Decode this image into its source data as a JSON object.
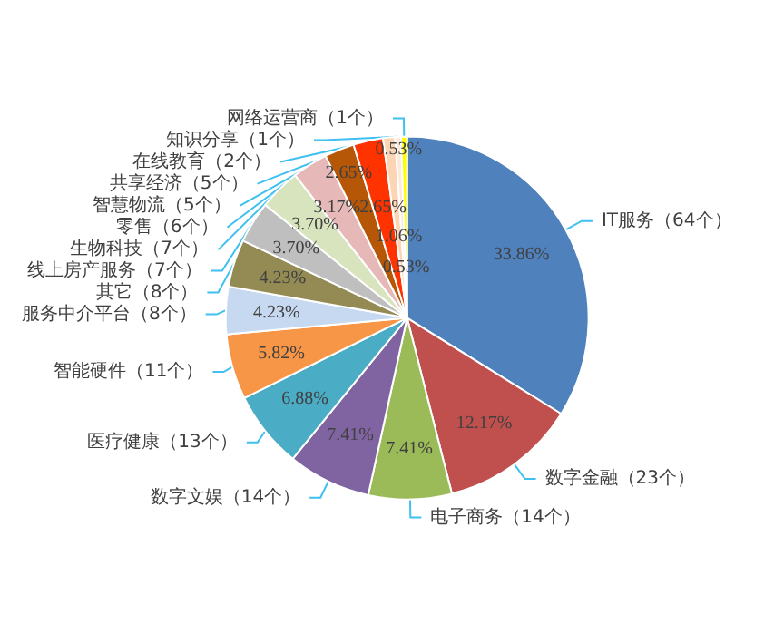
{
  "chart_data": {
    "type": "pie",
    "categories": [
      "IT服务（64个）",
      "数字金融（23个）",
      "电子商务（14个）",
      "数字文娱（14个）",
      "医疗健康（13个）",
      "智能硬件（11个）",
      "服务中介平台（8个）",
      "其它（8个）",
      "线上房产服务（7个）",
      "生物科技（7个）",
      "零售（6个）",
      "智慧物流（5个）",
      "共享经济（5个）",
      "在线教育（2个）",
      "知识分享（1个）",
      "网络运营商（1个）"
    ],
    "values": [
      33.86,
      12.17,
      7.41,
      7.41,
      6.88,
      5.82,
      4.23,
      4.23,
      3.7,
      3.7,
      3.17,
      2.65,
      2.65,
      1.06,
      0.53,
      0.53
    ],
    "value_labels": [
      "33.86%",
      "12.17%",
      "7.41%",
      "7.41%",
      "6.88%",
      "5.82%",
      "4.23%",
      "4.23%",
      "3.70%",
      "3.70%",
      "3.17%",
      "2.65%",
      "2.65%",
      "1.06%",
      "0.53%",
      "0.53%"
    ],
    "colors": [
      "#4f81bd",
      "#c0504d",
      "#9bbb59",
      "#8064a2",
      "#4bacc6",
      "#f79646",
      "#c6d9f1",
      "#948a54",
      "#bfbfbf",
      "#d7e4bd",
      "#e6b9b8",
      "#b65708",
      "#ff3300",
      "#fcd5b4",
      "#fde9d9",
      "#ffff00"
    ],
    "legend": false
  }
}
